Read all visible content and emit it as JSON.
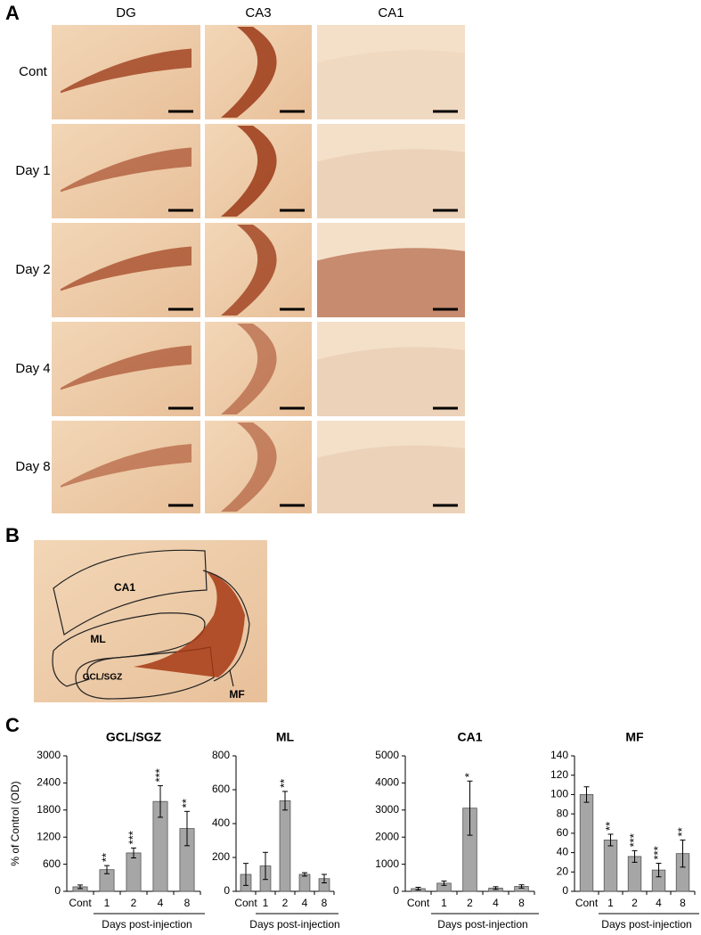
{
  "panel_a": {
    "label": "A",
    "columns": [
      "DG",
      "CA3",
      "CA1"
    ],
    "rows": [
      "Cont",
      "Day 1",
      "Day 2",
      "Day 4",
      "Day 8"
    ]
  },
  "panel_b": {
    "label": "B",
    "regions": [
      "CA1",
      "ML",
      "GCL/SGZ",
      "MF"
    ]
  },
  "panel_c": {
    "label": "C"
  },
  "chart_data": [
    {
      "type": "bar",
      "title": "GCL/SGZ",
      "y_label": "% of Control (OD)",
      "x_label": "Days post-injection",
      "categories": [
        "Cont",
        "1",
        "2",
        "4",
        "8"
      ],
      "values": [
        100,
        480,
        850,
        1990,
        1390
      ],
      "errors": [
        40,
        90,
        110,
        350,
        380
      ],
      "significance": [
        null,
        "**",
        "***",
        "***",
        "**"
      ],
      "color": "#a6a6a6",
      "ylim": [
        0,
        3000
      ],
      "yticks": [
        0,
        600,
        1200,
        1800,
        2400,
        3000
      ]
    },
    {
      "type": "bar",
      "title": "ML",
      "x_label": "Days post-injection",
      "categories": [
        "Cont",
        "1",
        "2",
        "4",
        "8"
      ],
      "values": [
        100,
        150,
        535,
        100,
        75
      ],
      "errors": [
        65,
        80,
        55,
        10,
        25
      ],
      "significance": [
        null,
        null,
        "**",
        null,
        null
      ],
      "color": "#a6a6a6",
      "ylim": [
        0,
        800
      ],
      "yticks": [
        0,
        200,
        400,
        600,
        800
      ]
    },
    {
      "type": "bar",
      "title": "CA1",
      "x_label": "Days post-injection",
      "categories": [
        "Cont",
        "1",
        "2",
        "4",
        "8"
      ],
      "values": [
        100,
        300,
        3070,
        120,
        180
      ],
      "errors": [
        50,
        80,
        1000,
        50,
        60
      ],
      "significance": [
        null,
        null,
        "*",
        null,
        null
      ],
      "color": "#a6a6a6",
      "ylim": [
        0,
        5000
      ],
      "yticks": [
        0,
        1000,
        2000,
        3000,
        4000,
        5000
      ]
    },
    {
      "type": "bar",
      "title": "MF",
      "x_label": "Days post-injection",
      "categories": [
        "Cont",
        "1",
        "2",
        "4",
        "8"
      ],
      "values": [
        100,
        53,
        36,
        22,
        39
      ],
      "errors": [
        8,
        6,
        6,
        7,
        14
      ],
      "significance": [
        null,
        "**",
        "***",
        "***",
        "**"
      ],
      "color": "#a6a6a6",
      "ylim": [
        0,
        140
      ],
      "yticks": [
        0,
        20,
        40,
        60,
        80,
        100,
        120,
        140
      ]
    }
  ]
}
